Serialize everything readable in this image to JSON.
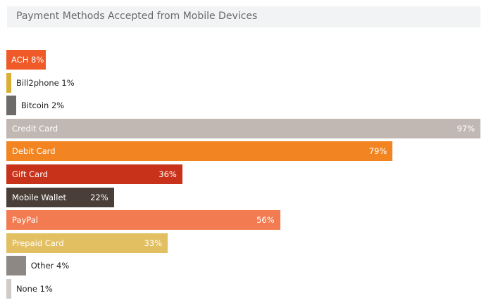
{
  "chart_data": {
    "type": "bar",
    "orientation": "horizontal",
    "title": "Payment Methods Accepted from Mobile Devices",
    "xlabel": "",
    "ylabel": "",
    "xlim": [
      0,
      100
    ],
    "grid": false,
    "categories": [
      "ACH",
      "Bill2phone",
      "Bitcoin",
      "Credit Card",
      "Debit Card",
      "Gift Card",
      "Mobile Wallet",
      "PayPal",
      "Prepaid Card",
      "Other",
      "None"
    ],
    "values": [
      8,
      1,
      2,
      97,
      79,
      36,
      22,
      56,
      33,
      4,
      1
    ],
    "value_labels": [
      "8%",
      "1%",
      "2%",
      "97%",
      "79%",
      "36%",
      "22%",
      "56%",
      "33%",
      "4%",
      "1%"
    ],
    "colors": [
      "#f05a28",
      "#d9b035",
      "#6d6b69",
      "#c2b8b3",
      "#f28522",
      "#c9321a",
      "#4a3f38",
      "#f27b52",
      "#e2bf60",
      "#8d8884",
      "#cfcbc8"
    ]
  }
}
